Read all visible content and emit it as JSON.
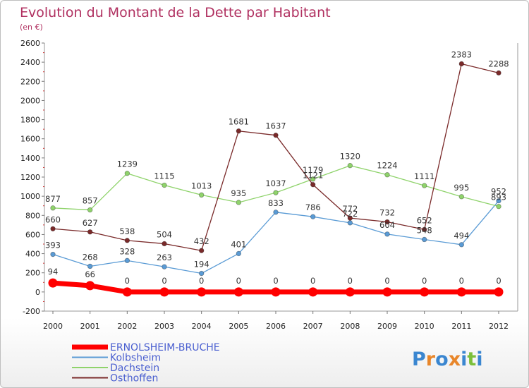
{
  "title": "Evolution du Montant de la Dette par Habitant",
  "subtitle": "(en €)",
  "logo": {
    "letters": [
      "P",
      "r",
      "o",
      "x",
      "i",
      "t",
      "i"
    ],
    "colors": [
      "#3a86d0",
      "#e8862a",
      "#3a86d0",
      "#e8862a",
      "#3a86d0",
      "#7bbf3a",
      "#3a86d0"
    ]
  },
  "chart_data": {
    "type": "line",
    "title": "Evolution du Montant de la Dette par Habitant",
    "subtitle": "(en €)",
    "xlabel": "",
    "ylabel": "",
    "ylim": [
      -200,
      2600
    ],
    "yticks": [
      -200,
      0,
      200,
      400,
      600,
      800,
      1000,
      1200,
      1400,
      1600,
      1800,
      2000,
      2200,
      2400,
      2600
    ],
    "categories": [
      "2000",
      "2001",
      "2002",
      "2003",
      "2004",
      "2005",
      "2006",
      "2007",
      "2008",
      "2009",
      "2010",
      "2011",
      "2012"
    ],
    "grid": false,
    "legend_position": "bottom-left",
    "series": [
      {
        "name": "ERNOLSHEIM-BRUCHE",
        "color": "#ff0000",
        "values": [
          94,
          66,
          0,
          0,
          0,
          0,
          0,
          0,
          0,
          0,
          0,
          0,
          0
        ],
        "labels": [
          "94",
          "66",
          "0",
          "0",
          "0",
          "0",
          "0",
          "0",
          "0",
          "0",
          "0",
          "0",
          "0"
        ],
        "bold": true
      },
      {
        "name": "Kolbsheim",
        "color": "#5a9bd5",
        "values": [
          393,
          268,
          328,
          263,
          194,
          401,
          833,
          786,
          722,
          604,
          548,
          494,
          952
        ],
        "labels": [
          "393",
          "268",
          "328",
          "263",
          "194",
          "401",
          "833",
          "786",
          "722",
          "604",
          "548",
          "494",
          "952"
        ]
      },
      {
        "name": "Dachstein",
        "color": "#8fd36b",
        "values": [
          877,
          857,
          1239,
          1115,
          1013,
          935,
          1037,
          1179,
          1320,
          1224,
          1111,
          995,
          893
        ],
        "labels": [
          "877",
          "857",
          "1239",
          "1115",
          "1013",
          "935",
          "1037",
          "1179",
          "1320",
          "1224",
          "1111",
          "995",
          "893"
        ]
      },
      {
        "name": "Osthoffen",
        "color": "#7a2a2a",
        "values": [
          660,
          627,
          538,
          504,
          432,
          1681,
          1637,
          1121,
          772,
          732,
          652,
          2383,
          2288
        ],
        "labels": [
          "660",
          "627",
          "538",
          "504",
          "432",
          "1681",
          "1637",
          "1121",
          "772",
          "732",
          "652",
          "2383",
          "2288"
        ]
      }
    ]
  }
}
